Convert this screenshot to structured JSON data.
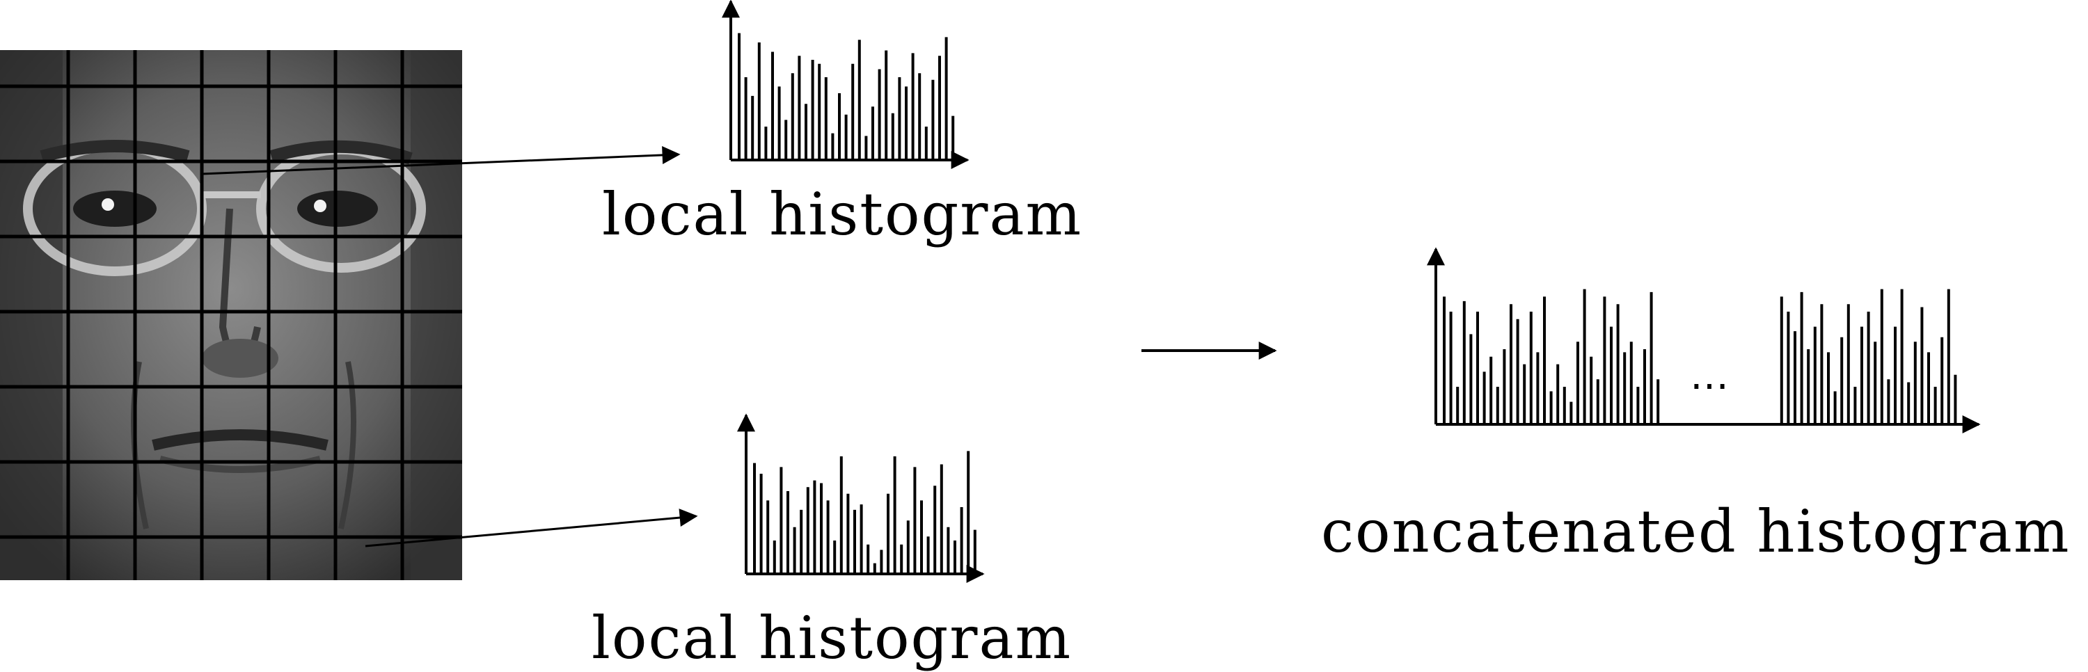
{
  "labels": {
    "local_histogram_top": "local histogram",
    "local_histogram_bottom": "local histogram",
    "concatenated": "concatenated histogram",
    "ellipsis": "…"
  },
  "grid": {
    "columns": 7,
    "rows": 7
  },
  "colors": {
    "ink": "#000000",
    "face_light": "#7a7a7a",
    "face_dark": "#2b2b2b"
  },
  "histograms": {
    "local_top": [
      0.95,
      0.62,
      0.48,
      0.88,
      0.25,
      0.81,
      0.55,
      0.3,
      0.65,
      0.78,
      0.42,
      0.75,
      0.72,
      0.62,
      0.2,
      0.5,
      0.34,
      0.72,
      0.9,
      0.18,
      0.4,
      0.68,
      0.82,
      0.35,
      0.62,
      0.55,
      0.8,
      0.65,
      0.25,
      0.6,
      0.78,
      0.92,
      0.33
    ],
    "local_bottom": [
      0.83,
      0.75,
      0.55,
      0.25,
      0.8,
      0.62,
      0.35,
      0.48,
      0.65,
      0.7,
      0.68,
      0.55,
      0.25,
      0.88,
      0.6,
      0.48,
      0.52,
      0.22,
      0.08,
      0.18,
      0.6,
      0.88,
      0.22,
      0.4,
      0.8,
      0.55,
      0.28,
      0.66,
      0.82,
      0.35,
      0.25,
      0.5,
      0.92,
      0.33
    ],
    "concat_left": [
      0.85,
      0.75,
      0.25,
      0.82,
      0.6,
      0.75,
      0.35,
      0.45,
      0.25,
      0.5,
      0.8,
      0.7,
      0.4,
      0.75,
      0.48,
      0.85,
      0.22,
      0.4,
      0.25,
      0.15,
      0.55,
      0.9,
      0.45,
      0.3,
      0.85,
      0.65,
      0.8,
      0.48,
      0.55,
      0.25,
      0.5,
      0.88,
      0.3
    ],
    "concat_right": [
      0.85,
      0.75,
      0.62,
      0.88,
      0.5,
      0.65,
      0.8,
      0.48,
      0.22,
      0.58,
      0.8,
      0.25,
      0.65,
      0.75,
      0.55,
      0.9,
      0.3,
      0.65,
      0.9,
      0.28,
      0.55,
      0.78,
      0.48,
      0.25,
      0.58,
      0.9,
      0.33
    ]
  }
}
